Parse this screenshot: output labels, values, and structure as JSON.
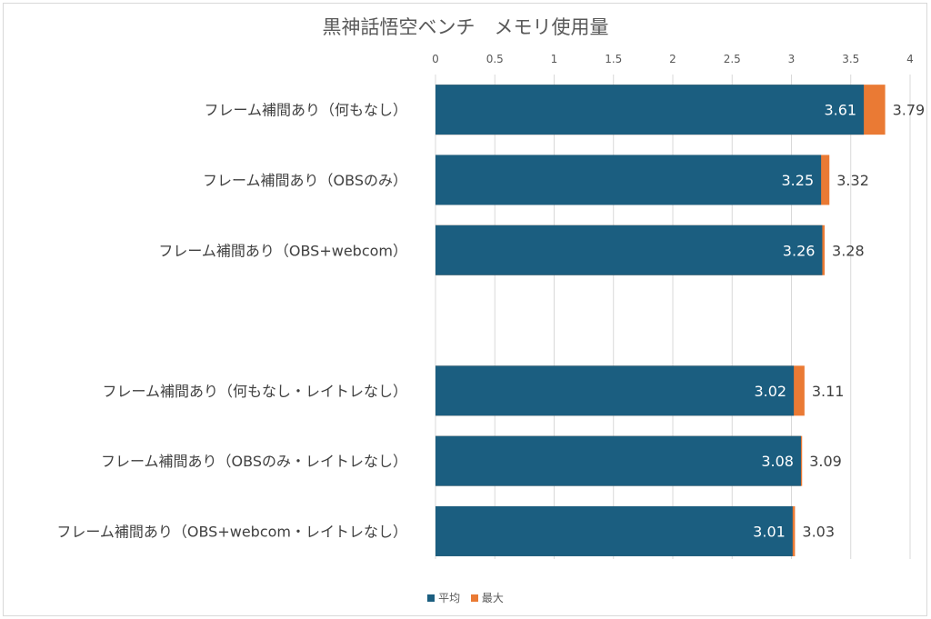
{
  "chart_data": {
    "type": "bar",
    "orientation": "horizontal",
    "title": "黒神話悟空ベンチ　メモリ使用量",
    "categories": [
      "フレーム補間あり（何もなし）",
      "フレーム補間あり（OBSのみ）",
      "フレーム補間あり（OBS+webcom）",
      "",
      "フレーム補間あり（何もなし・レイトレなし）",
      "フレーム補間あり（OBSのみ・レイトレなし）",
      "フレーム補間あり（OBS+webcom・レイトレなし）"
    ],
    "series": [
      {
        "name": "平均",
        "color": "#1b5e80",
        "values": [
          3.61,
          3.25,
          3.26,
          null,
          3.02,
          3.08,
          3.01
        ]
      },
      {
        "name": "最大",
        "color": "#ea7a34",
        "values": [
          3.79,
          3.32,
          3.28,
          null,
          3.11,
          3.09,
          3.03
        ]
      }
    ],
    "xlim": [
      0,
      4
    ],
    "xticks": [
      "0",
      "0.5",
      "1",
      "1.5",
      "2",
      "2.5",
      "3",
      "3.5",
      "4"
    ],
    "xtick_values": [
      0,
      0.5,
      1,
      1.5,
      2,
      2.5,
      3,
      3.5,
      4
    ],
    "grid": true,
    "legend_position": "bottom",
    "stacked_overlay": "max drawn behind average"
  }
}
